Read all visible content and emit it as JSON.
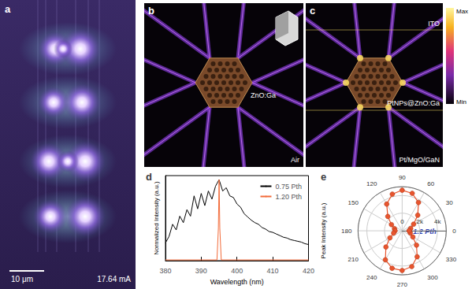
{
  "image_a": {
    "label": "a",
    "scale_bar": "10 μm",
    "current": "17.64 mA"
  },
  "image_b": {
    "label": "b",
    "core": "ZnO:Ga",
    "medium": "Air"
  },
  "image_c": {
    "label": "c",
    "top_layer": "ITO",
    "core": "PtNPs@ZnO:Ga",
    "substrate": "Pt/MgO/GaN",
    "colorbar": {
      "max": "Max",
      "min": "Min"
    }
  },
  "chart_data": [
    {
      "type": "line",
      "title": "d",
      "xlabel": "Wavelength (nm)",
      "ylabel": "Normalized Intensity (a.u.)",
      "xlim": [
        380,
        420
      ],
      "xticks": [
        380,
        390,
        400,
        410,
        420
      ],
      "ylim": [
        0,
        1.05
      ],
      "tick_labels": "x",
      "grid": false,
      "legend": "upper right",
      "series": [
        {
          "name": "0.75 Pth",
          "color": "#000000",
          "x": [
            380,
            381,
            382,
            383,
            384,
            385,
            386,
            387,
            388,
            389,
            390,
            391,
            392,
            393,
            394,
            395,
            396,
            397,
            398,
            399,
            400,
            401,
            402,
            403,
            404,
            405,
            406,
            407,
            408,
            409,
            410,
            411,
            412,
            413,
            414,
            415,
            416,
            417,
            418,
            419,
            420
          ],
          "values": [
            0.22,
            0.3,
            0.45,
            0.38,
            0.55,
            0.47,
            0.63,
            0.55,
            0.8,
            0.64,
            0.83,
            0.68,
            0.86,
            0.76,
            0.92,
            1.0,
            0.86,
            0.9,
            0.8,
            0.78,
            0.7,
            0.66,
            0.58,
            0.54,
            0.5,
            0.47,
            0.45,
            0.41,
            0.39,
            0.36,
            0.35,
            0.33,
            0.31,
            0.29,
            0.28,
            0.26,
            0.25,
            0.24,
            0.23,
            0.21,
            0.2
          ]
        },
        {
          "name": "1.20 Pth",
          "color": "#f26b3a",
          "x": [
            380,
            394.4,
            394.8,
            395,
            395.2,
            395.6,
            420
          ],
          "values": [
            0.01,
            0.01,
            0.4,
            1.0,
            0.4,
            0.01,
            0.01
          ]
        }
      ]
    },
    {
      "type": "polar",
      "title": "e",
      "ylabel": "Peak Intensity (a.u.)",
      "annotations": [
        "1.2 Pth"
      ],
      "xlim": [
        0,
        360
      ],
      "xticks": [
        0,
        30,
        60,
        90,
        120,
        150,
        180,
        210,
        240,
        270,
        300,
        330
      ],
      "ylim": [
        0,
        5000
      ],
      "yticks": [
        0,
        {
          "value": 2000,
          "label": "2k"
        },
        {
          "value": 4000,
          "label": "4k"
        }
      ],
      "grid": true,
      "series": [
        {
          "color": "#e8552e",
          "marker": "circle",
          "x": [
            0,
            15,
            30,
            45,
            60,
            75,
            90,
            105,
            120,
            135,
            150,
            165,
            180,
            195,
            210,
            225,
            240,
            255,
            270,
            285,
            300,
            315,
            330,
            345,
            360
          ],
          "values": [
            800,
            1000,
            1500,
            2500,
            3700,
            4400,
            4600,
            4300,
            3500,
            2300,
            1400,
            900,
            800,
            1000,
            1600,
            2600,
            3800,
            4400,
            4500,
            4200,
            3400,
            2300,
            1400,
            950,
            800
          ]
        }
      ]
    }
  ]
}
